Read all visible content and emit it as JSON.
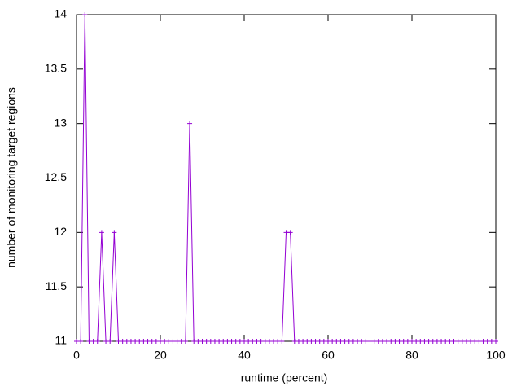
{
  "chart_data": {
    "type": "line",
    "xlabel": "runtime (percent)",
    "ylabel": "number of monitoring target regions",
    "color": "#9400d3",
    "x": [
      0,
      1,
      2,
      3,
      4,
      5,
      6,
      7,
      8,
      9,
      10,
      11,
      12,
      13,
      14,
      15,
      16,
      17,
      18,
      19,
      20,
      21,
      22,
      23,
      24,
      25,
      26,
      27,
      28,
      29,
      30,
      31,
      32,
      33,
      34,
      35,
      36,
      37,
      38,
      39,
      40,
      41,
      42,
      43,
      44,
      45,
      46,
      47,
      48,
      49,
      50,
      51,
      52,
      53,
      54,
      55,
      56,
      57,
      58,
      59,
      60,
      61,
      62,
      63,
      64,
      65,
      66,
      67,
      68,
      69,
      70,
      71,
      72,
      73,
      74,
      75,
      76,
      77,
      78,
      79,
      80,
      81,
      82,
      83,
      84,
      85,
      86,
      87,
      88,
      89,
      90,
      91,
      92,
      93,
      94,
      95,
      96,
      97,
      98,
      99,
      100
    ],
    "values": [
      11,
      11,
      14,
      11,
      11,
      11,
      12,
      11,
      11,
      12,
      11,
      11,
      11,
      11,
      11,
      11,
      11,
      11,
      11,
      11,
      11,
      11,
      11,
      11,
      11,
      11,
      11,
      13,
      11,
      11,
      11,
      11,
      11,
      11,
      11,
      11,
      11,
      11,
      11,
      11,
      11,
      11,
      11,
      11,
      11,
      11,
      11,
      11,
      11,
      11,
      12,
      12,
      11,
      11,
      11,
      11,
      11,
      11,
      11,
      11,
      11,
      11,
      11,
      11,
      11,
      11,
      11,
      11,
      11,
      11,
      11,
      11,
      11,
      11,
      11,
      11,
      11,
      11,
      11,
      11,
      11,
      11,
      11,
      11,
      11,
      11,
      11,
      11,
      11,
      11,
      11,
      11,
      11,
      11,
      11,
      11,
      11,
      11,
      11,
      11,
      11
    ],
    "xlim": [
      0,
      100
    ],
    "xticks": [
      0,
      20,
      40,
      60,
      80,
      100
    ],
    "ylim": [
      11,
      14
    ],
    "yticks": [
      11,
      11.5,
      12,
      12.5,
      13,
      13.5,
      14
    ]
  }
}
